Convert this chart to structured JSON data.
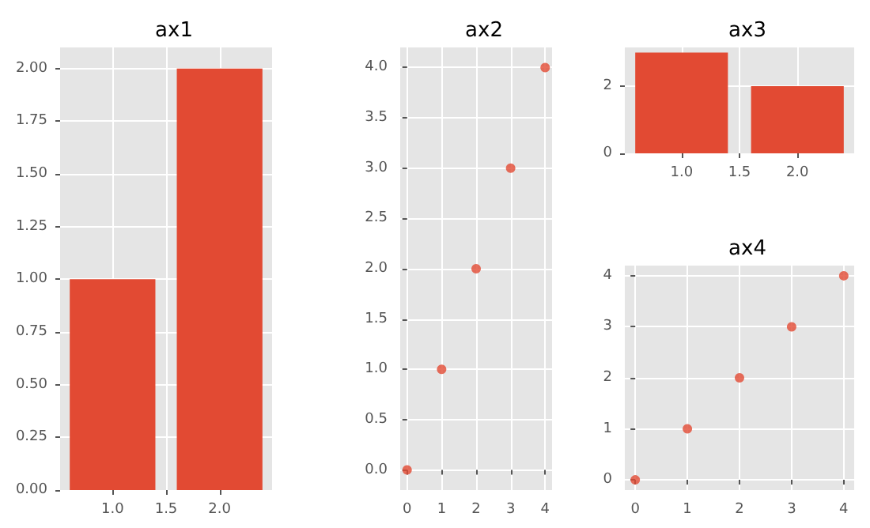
{
  "chart_data": [
    {
      "type": "bar",
      "title": "ax1",
      "x": [
        1,
        2
      ],
      "values": [
        1,
        2
      ],
      "color": "#e24a33",
      "xlim": [
        0.51,
        2.49
      ],
      "xticks": [
        {
          "value": 1,
          "label": "1.0"
        },
        {
          "value": 1.5,
          "label": "1.5"
        },
        {
          "value": 2,
          "label": "2.0"
        }
      ],
      "ylim": [
        0,
        2.1
      ],
      "yticks": [
        {
          "value": 0,
          "label": "0.00"
        },
        {
          "value": 0.25,
          "label": "0.25"
        },
        {
          "value": 0.5,
          "label": "0.50"
        },
        {
          "value": 0.75,
          "label": "0.75"
        },
        {
          "value": 1,
          "label": "1.00"
        },
        {
          "value": 1.25,
          "label": "1.25"
        },
        {
          "value": 1.5,
          "label": "1.50"
        },
        {
          "value": 1.75,
          "label": "1.75"
        },
        {
          "value": 2,
          "label": "2.00"
        }
      ],
      "grid": true
    },
    {
      "type": "scatter",
      "title": "ax2",
      "x": [
        0,
        1,
        2,
        3,
        4
      ],
      "values": [
        0,
        1,
        2,
        3,
        4
      ],
      "color": "#e24a33",
      "marker": "circle",
      "xlim": [
        -0.2,
        4.2
      ],
      "xticks": [
        0,
        1,
        2,
        3,
        4
      ],
      "ylim": [
        -0.2,
        4.2
      ],
      "yticks": [
        {
          "value": 0,
          "label": "0.0"
        },
        {
          "value": 0.5,
          "label": "0.5"
        },
        {
          "value": 1,
          "label": "1.0"
        },
        {
          "value": 1.5,
          "label": "1.5"
        },
        {
          "value": 2,
          "label": "2.0"
        },
        {
          "value": 2.5,
          "label": "2.5"
        },
        {
          "value": 3,
          "label": "3.0"
        },
        {
          "value": 3.5,
          "label": "3.5"
        },
        {
          "value": 4,
          "label": "4.0"
        }
      ],
      "grid": true
    },
    {
      "type": "bar",
      "title": "ax3",
      "x": [
        1,
        2
      ],
      "values": [
        3,
        2
      ],
      "color": "#e24a33",
      "xlim": [
        0.51,
        2.49
      ],
      "xticks": [
        {
          "value": 1,
          "label": "1.0"
        },
        {
          "value": 1.5,
          "label": "1.5"
        },
        {
          "value": 2,
          "label": "2.0"
        }
      ],
      "ylim": [
        0,
        3.15
      ],
      "yticks": [
        0,
        2
      ],
      "grid": true
    },
    {
      "type": "scatter",
      "title": "ax4",
      "x": [
        0,
        1,
        2,
        3,
        4
      ],
      "values": [
        0,
        1,
        2,
        3,
        4
      ],
      "color": "#e24a33",
      "marker": "circle",
      "xlim": [
        -0.2,
        4.2
      ],
      "xticks": [
        0,
        1,
        2,
        3,
        4
      ],
      "ylim": [
        -0.2,
        4.2
      ],
      "yticks": [
        0,
        1,
        2,
        3,
        4
      ],
      "grid": true
    }
  ]
}
